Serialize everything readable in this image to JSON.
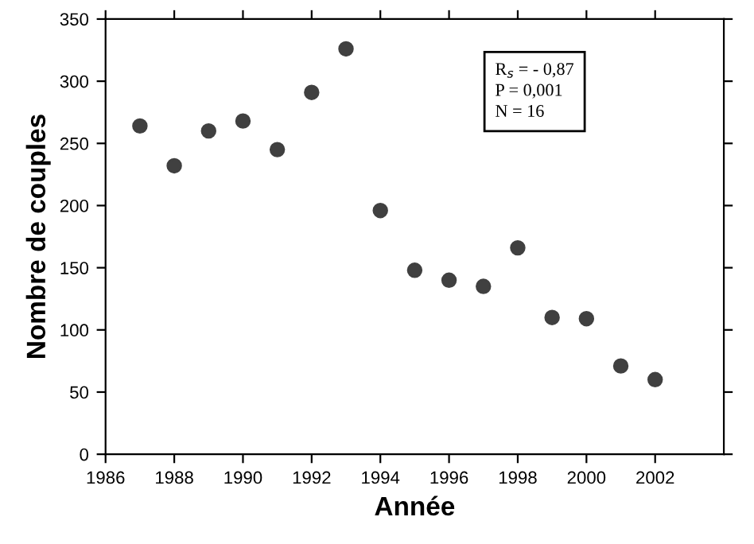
{
  "chart_data": {
    "type": "scatter",
    "xlabel": "Année",
    "ylabel": "Nombre de couples",
    "x": [
      1987,
      1988,
      1989,
      1990,
      1991,
      1992,
      1993,
      1994,
      1995,
      1996,
      1997,
      1998,
      1999,
      2000,
      2001,
      2002
    ],
    "series": [
      {
        "color": "#404040",
        "values": [
          264,
          232,
          260,
          268,
          245,
          291,
          326,
          196,
          148,
          140,
          135,
          166,
          110,
          109,
          71,
          60
        ]
      }
    ],
    "xlim": [
      1986,
      2004
    ],
    "xticks": [
      1986,
      1988,
      1990,
      1992,
      1994,
      1996,
      1998,
      2000,
      2002
    ],
    "ylim": [
      0,
      350
    ],
    "yticks": [
      0,
      50,
      100,
      150,
      200,
      250,
      300,
      350
    ],
    "marker": "circle",
    "grid": false,
    "legend": false,
    "annotations": [
      "R$_{s}$ = - 0,87\nP = 0,001\nN = 16"
    ]
  }
}
